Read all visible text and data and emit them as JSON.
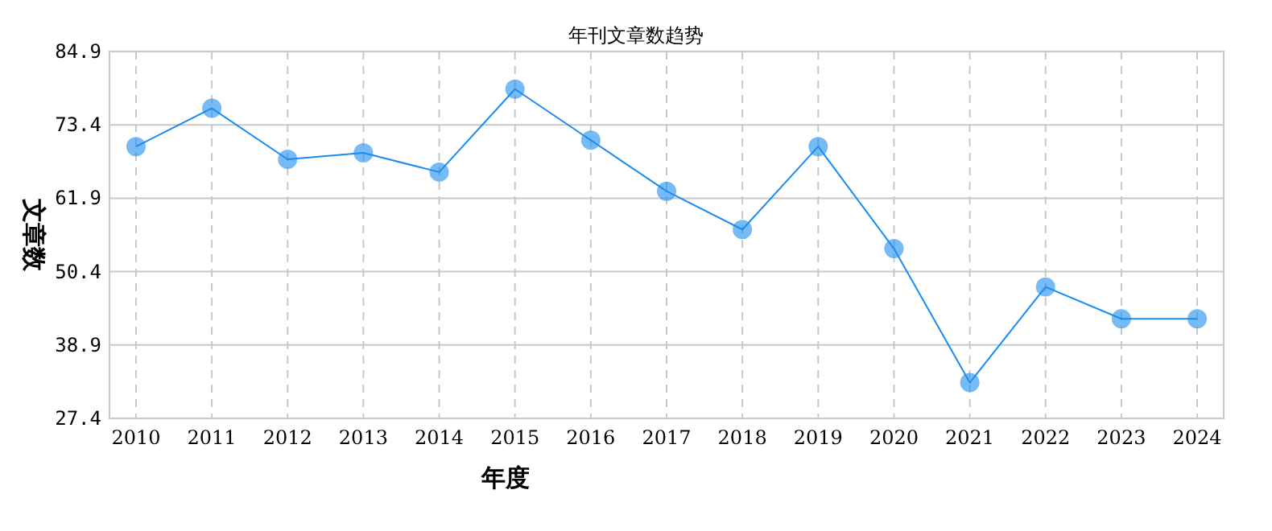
{
  "chart_data": {
    "type": "line",
    "title": "年刊文章数趋势",
    "xlabel": "年度",
    "ylabel": "文章数",
    "categories": [
      "2010",
      "2011",
      "2012",
      "2013",
      "2014",
      "2015",
      "2016",
      "2017",
      "2018",
      "2019",
      "2020",
      "2021",
      "2022",
      "2023",
      "2024"
    ],
    "series": [
      {
        "color": "#1a8cf0",
        "values": [
          70,
          76,
          68,
          69,
          66,
          79,
          71,
          63,
          57,
          70,
          54,
          33,
          48,
          43,
          43
        ]
      }
    ],
    "ylim": [
      27.4,
      84.9
    ],
    "yticks": [
      27.4,
      38.9,
      50.4,
      61.9,
      73.4,
      84.9
    ],
    "grid": true,
    "marker": "circle",
    "line_style": "solid"
  }
}
